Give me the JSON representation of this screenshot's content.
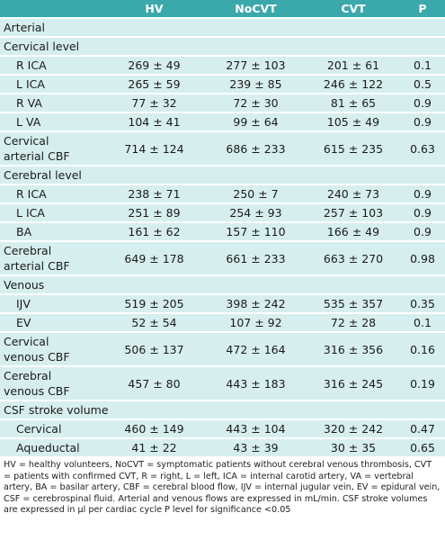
{
  "table": {
    "header": [
      "",
      "HV",
      "NoCVT",
      "CVT",
      "P"
    ],
    "rows": [
      [
        "Arterial"
      ],
      [
        "Cervical level"
      ],
      [
        "R ICA",
        "269 ± 49",
        "277 ± 103",
        "201 ± 61",
        "0.1"
      ],
      [
        "L ICA",
        "265 ± 59",
        "239 ± 85",
        "246 ± 122",
        "0.5"
      ],
      [
        "R VA",
        "77 ± 32",
        "72 ± 30",
        "81 ± 65",
        "0.9"
      ],
      [
        "L VA",
        "104 ± 41",
        "99 ± 64",
        "105 ± 49",
        "0.9"
      ],
      [
        "Cervical\narterial CBF",
        "714 ± 124",
        "686 ± 233",
        "615 ± 235",
        "0.63"
      ],
      [
        "Cerebral level"
      ],
      [
        "R ICA",
        "238 ± 71",
        "250 ± 7",
        "240 ± 73",
        "0.9"
      ],
      [
        "L ICA",
        "251 ± 89",
        "254 ± 93",
        "257 ± 103",
        "0.9"
      ],
      [
        "BA",
        "161 ± 62",
        "157 ± 110",
        "166 ± 49",
        "0.9"
      ],
      [
        "Cerebral\narterial CBF",
        "649 ± 178",
        "661 ± 233",
        "663 ± 270",
        "0.98"
      ],
      [
        "Venous"
      ],
      [
        "IJV",
        "519 ± 205",
        "398 ± 242",
        "535 ± 357",
        "0.35"
      ],
      [
        "EV",
        "52 ± 54",
        "107 ± 92",
        "72 ± 28",
        "0.1"
      ],
      [
        "Cervical\nvenous CBF",
        "506 ± 137",
        "472 ± 164",
        "316 ± 356",
        "0.16"
      ],
      [
        "Cerebral\nvenous CBF",
        "457 ± 80",
        "443 ± 183",
        "316 ± 245",
        "0.19"
      ],
      [
        "CSF stroke volume"
      ],
      [
        "Cervical",
        "460 ± 149",
        "443 ± 104",
        "320 ± 242",
        "0.47"
      ],
      [
        "Aqueductal",
        "41 ± 22",
        "43 ± 39",
        "30 ± 35",
        "0.65"
      ]
    ],
    "note": "HV = healthy volunteers, NoCVT = symptomatic patients without cerebral venous thrombosis, CVT = patients with confirmed CVT, R = right, L = left, ICA = internal carotid artery, VA = vertebral artery, BA = basilar artery, CBF = cerebral blood flow, IJV = internal jugular vein, EV = epidural vein, CSF = cerebrospinal fluid. Arterial and venous flows are expressed in mL/min. CSF stroke volumes are expressed in µl per cardiac cycle P level for significance <0.05"
  }
}
